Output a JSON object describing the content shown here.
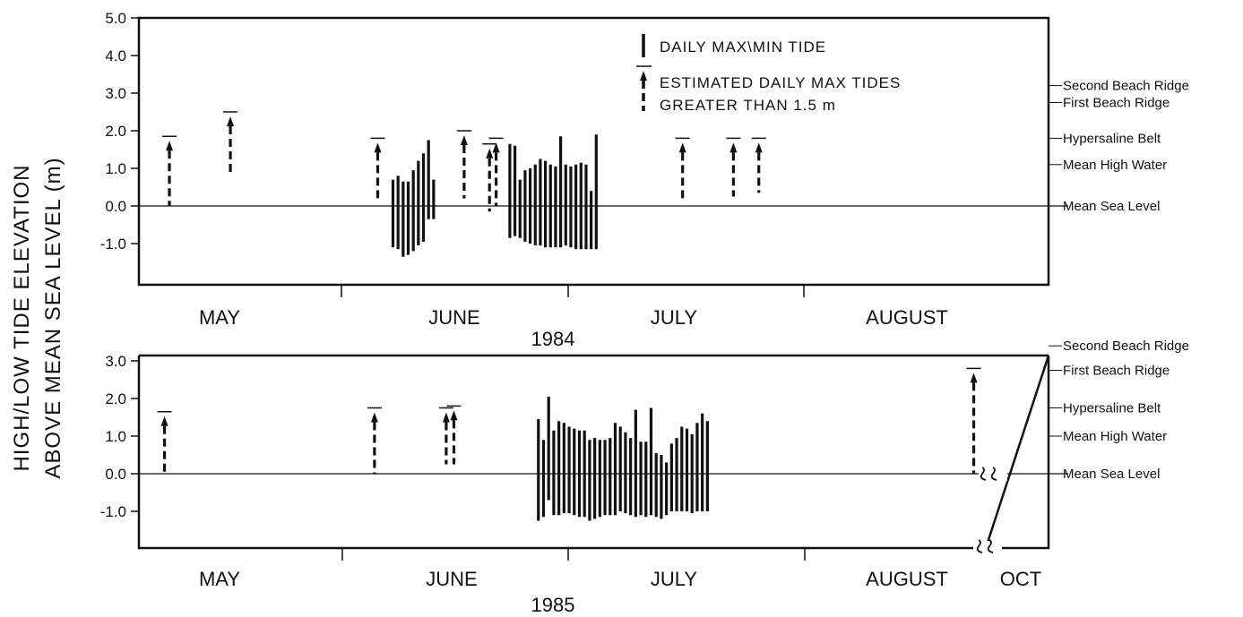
{
  "ylabel_line1": "HIGH/LOW TIDE ELEVATION",
  "ylabel_line2": "ABOVE MEAN SEA LEVEL (m)",
  "legend": {
    "solid": "DAILY MAX\\MIN TIDE",
    "dashed_line1": "ESTIMATED DAILY MAX TIDES",
    "dashed_line2": "GREATER THAN 1.5 m"
  },
  "chart_data": [
    {
      "type": "bar",
      "title": "",
      "year_label": "1984",
      "xlabel": "",
      "ylabel": "",
      "ylim": [
        -2.0,
        5.0
      ],
      "yticks": [
        {
          "value": 5.0,
          "label": "5.0"
        },
        {
          "value": 4.0,
          "label": "4.0"
        },
        {
          "value": 3.0,
          "label": "3.0"
        },
        {
          "value": 2.0,
          "label": "2.0"
        },
        {
          "value": 1.0,
          "label": "1.0"
        },
        {
          "value": 0.0,
          "label": "0.0"
        },
        {
          "value": -1.0,
          "label": "-1.0"
        }
      ],
      "months": [
        "MAY",
        "JUNE",
        "JULY",
        "AUGUST"
      ],
      "reference_lines": [
        {
          "label": "Second Beach Ridge",
          "value": 3.2
        },
        {
          "label": "First Beach Ridge",
          "value": 2.75
        },
        {
          "label": "Hypersaline Belt",
          "value": 1.8
        },
        {
          "label": "Mean High Water",
          "value": 1.1
        },
        {
          "label": "Mean Sea Level",
          "value": 0.0
        }
      ],
      "estimated_max": [
        {
          "day": 6,
          "low": 0.0,
          "high": 1.85
        },
        {
          "day": 18,
          "low": 0.85,
          "high": 2.5
        },
        {
          "day": 47,
          "low": 0.2,
          "high": 1.8
        },
        {
          "day": 64,
          "low": 0.2,
          "high": 2.0
        },
        {
          "day": 69,
          "low": -0.15,
          "high": 1.65
        },
        {
          "day": 70.3,
          "low": 0.0,
          "high": 1.8
        },
        {
          "day": 107,
          "low": 0.2,
          "high": 1.8
        },
        {
          "day": 117,
          "low": 0.25,
          "high": 1.8
        },
        {
          "day": 122,
          "low": 0.35,
          "high": 1.8
        }
      ],
      "daily_maxmin": [
        {
          "day": 50,
          "low": -1.1,
          "high": 0.7
        },
        {
          "day": 51,
          "low": -1.15,
          "high": 0.8
        },
        {
          "day": 52,
          "low": -1.35,
          "high": 0.65
        },
        {
          "day": 53,
          "low": -1.3,
          "high": 0.65
        },
        {
          "day": 54,
          "low": -1.2,
          "high": 0.95
        },
        {
          "day": 55,
          "low": -1.05,
          "high": 1.2
        },
        {
          "day": 56,
          "low": -0.95,
          "high": 1.4
        },
        {
          "day": 57,
          "low": -0.35,
          "high": 1.75
        },
        {
          "day": 58,
          "low": -0.35,
          "high": 0.7
        },
        {
          "day": 73,
          "low": -0.85,
          "high": 1.65
        },
        {
          "day": 74,
          "low": -0.8,
          "high": 1.6
        },
        {
          "day": 75,
          "low": -0.85,
          "high": 0.7
        },
        {
          "day": 76,
          "low": -0.95,
          "high": 0.95
        },
        {
          "day": 77,
          "low": -1.0,
          "high": 1.0
        },
        {
          "day": 78,
          "low": -1.05,
          "high": 1.1
        },
        {
          "day": 79,
          "low": -1.05,
          "high": 1.25
        },
        {
          "day": 80,
          "low": -1.1,
          "high": 1.2
        },
        {
          "day": 81,
          "low": -1.1,
          "high": 1.1
        },
        {
          "day": 82,
          "low": -1.1,
          "high": 1.05
        },
        {
          "day": 83,
          "low": -1.1,
          "high": 1.85
        },
        {
          "day": 84,
          "low": -1.05,
          "high": 1.1
        },
        {
          "day": 85,
          "low": -1.1,
          "high": 1.05
        },
        {
          "day": 86,
          "low": -1.15,
          "high": 1.1
        },
        {
          "day": 87,
          "low": -1.15,
          "high": 1.15
        },
        {
          "day": 88,
          "low": -1.15,
          "high": 1.1
        },
        {
          "day": 89,
          "low": -1.15,
          "high": 0.4
        },
        {
          "day": 90,
          "low": -1.15,
          "high": 1.9
        }
      ]
    },
    {
      "type": "bar",
      "title": "",
      "year_label": "1985",
      "xlabel": "",
      "ylabel": "",
      "ylim": [
        -2.0,
        3.0
      ],
      "yticks": [
        {
          "value": 3.0,
          "label": "3.0"
        },
        {
          "value": 2.0,
          "label": "2.0"
        },
        {
          "value": 1.0,
          "label": "1.0"
        },
        {
          "value": 0.0,
          "label": "0.0"
        },
        {
          "value": -1.0,
          "label": "-1.0"
        }
      ],
      "months": [
        "MAY",
        "JUNE",
        "JULY",
        "AUGUST",
        "OCT"
      ],
      "reference_lines": [
        {
          "label": "Second Beach Ridge",
          "value": 3.4
        },
        {
          "label": "First Beach Ridge",
          "value": 2.75
        },
        {
          "label": "Hypersaline Belt",
          "value": 1.75
        },
        {
          "label": "Mean High Water",
          "value": 1.0
        },
        {
          "label": "Mean Sea Level",
          "value": 0.0
        }
      ],
      "estimated_max": [
        {
          "day": 5,
          "low": 0.0,
          "high": 1.65
        },
        {
          "day": 46,
          "low": 0.0,
          "high": 1.75
        },
        {
          "day": 60,
          "low": 0.25,
          "high": 1.75
        },
        {
          "day": 61.5,
          "low": 0.25,
          "high": 1.8
        },
        {
          "day": 163,
          "low": 0.0,
          "high": 2.8
        }
      ],
      "daily_maxmin": [
        {
          "day": 78,
          "low": -1.25,
          "high": 1.45
        },
        {
          "day": 79,
          "low": -1.15,
          "high": 0.9
        },
        {
          "day": 80,
          "low": -0.7,
          "high": 2.05
        },
        {
          "day": 81,
          "low": -1.1,
          "high": 1.15
        },
        {
          "day": 82,
          "low": -1.1,
          "high": 1.4
        },
        {
          "day": 83,
          "low": -1.05,
          "high": 1.35
        },
        {
          "day": 84,
          "low": -1.05,
          "high": 1.25
        },
        {
          "day": 85,
          "low": -1.1,
          "high": 1.2
        },
        {
          "day": 86,
          "low": -1.15,
          "high": 1.15
        },
        {
          "day": 87,
          "low": -1.15,
          "high": 1.15
        },
        {
          "day": 88,
          "low": -1.25,
          "high": 0.9
        },
        {
          "day": 89,
          "low": -1.2,
          "high": 0.95
        },
        {
          "day": 90,
          "low": -1.15,
          "high": 0.9
        },
        {
          "day": 91,
          "low": -1.1,
          "high": 0.9
        },
        {
          "day": 92,
          "low": -1.1,
          "high": 0.95
        },
        {
          "day": 93,
          "low": -1.1,
          "high": 1.35
        },
        {
          "day": 94,
          "low": -1.0,
          "high": 1.25
        },
        {
          "day": 95,
          "low": -1.05,
          "high": 1.1
        },
        {
          "day": 96,
          "low": -1.1,
          "high": 0.95
        },
        {
          "day": 97,
          "low": -1.15,
          "high": 1.7
        },
        {
          "day": 98,
          "low": -1.1,
          "high": 0.85
        },
        {
          "day": 99,
          "low": -1.15,
          "high": 0.85
        },
        {
          "day": 100,
          "low": -1.1,
          "high": 1.75
        },
        {
          "day": 101,
          "low": -1.15,
          "high": 0.55
        },
        {
          "day": 102,
          "low": -1.2,
          "high": 0.5
        },
        {
          "day": 103,
          "low": -1.1,
          "high": 0.3
        },
        {
          "day": 104,
          "low": -1.0,
          "high": 0.8
        },
        {
          "day": 105,
          "low": -1.0,
          "high": 0.95
        },
        {
          "day": 106,
          "low": -1.0,
          "high": 1.25
        },
        {
          "day": 107,
          "low": -1.0,
          "high": 1.2
        },
        {
          "day": 108,
          "low": -1.05,
          "high": 1.05
        },
        {
          "day": 109,
          "low": -1.0,
          "high": 1.35
        },
        {
          "day": 110,
          "low": -1.0,
          "high": 1.6
        },
        {
          "day": 111,
          "low": -1.0,
          "high": 1.4
        }
      ]
    }
  ]
}
